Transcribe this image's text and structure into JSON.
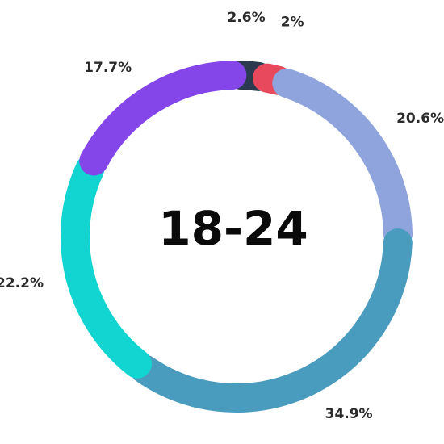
{
  "chart_data": {
    "type": "pie",
    "variant": "donut",
    "center_label": "18-24",
    "slices": [
      {
        "value": 2.6,
        "label": "2.6%",
        "color": "#2b3a4e"
      },
      {
        "value": 2.0,
        "label": "2%",
        "color": "#e8495c"
      },
      {
        "value": 20.6,
        "label": "20.6%",
        "color": "#8fa4dc"
      },
      {
        "value": 34.9,
        "label": "34.9%",
        "color": "#4a9cbe"
      },
      {
        "value": 22.2,
        "label": "22.2%",
        "color": "#12d5d2"
      },
      {
        "value": 17.7,
        "label": "17.7%",
        "color": "#8446e8"
      }
    ]
  }
}
